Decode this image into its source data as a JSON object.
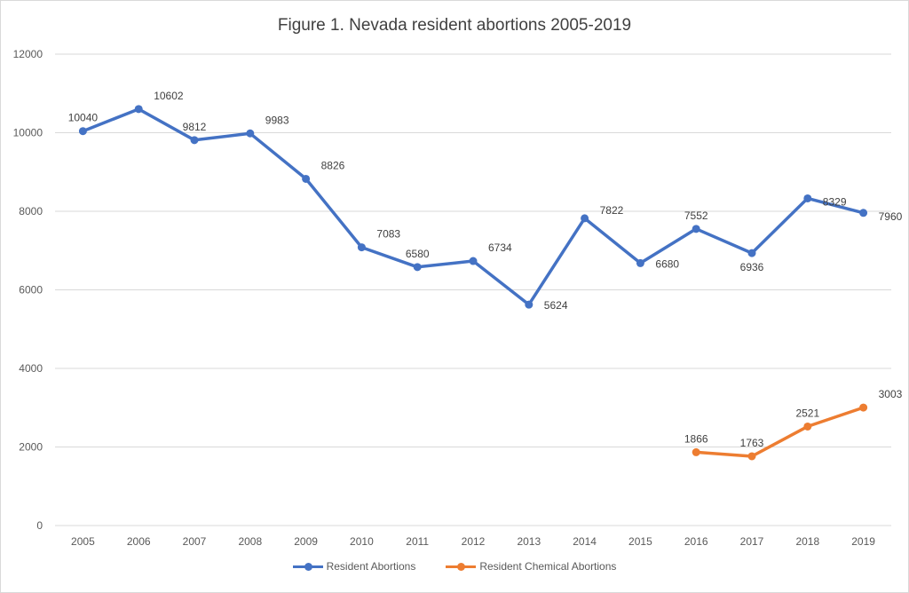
{
  "chart_data": {
    "type": "line",
    "title": "Figure 1. Nevada resident abortions 2005-2019",
    "xlabel": "",
    "ylabel": "",
    "categories": [
      "2005",
      "2006",
      "2007",
      "2008",
      "2009",
      "2010",
      "2011",
      "2012",
      "2013",
      "2014",
      "2015",
      "2016",
      "2017",
      "2018",
      "2019"
    ],
    "ylim": [
      0,
      12000
    ],
    "yticks": [
      "0",
      "2000",
      "4000",
      "6000",
      "8000",
      "10000",
      "12000"
    ],
    "grid": true,
    "legend_position": "bottom",
    "series": [
      {
        "name": "Resident Abortions",
        "color": "#4472c4",
        "values": [
          10040,
          10602,
          9812,
          9983,
          8826,
          7083,
          6580,
          6734,
          5624,
          7822,
          6680,
          7552,
          6936,
          8329,
          7960
        ],
        "labels": [
          "10040",
          "10602",
          "9812",
          "9983",
          "8826",
          "7083",
          "6580",
          "6734",
          "5624",
          "7822",
          "6680",
          "7552",
          "6936",
          "8329",
          "7960"
        ]
      },
      {
        "name": "Resident Chemical Abortions",
        "color": "#ed7d31",
        "values": [
          null,
          null,
          null,
          null,
          null,
          null,
          null,
          null,
          null,
          null,
          null,
          1866,
          1763,
          2521,
          3003
        ],
        "labels": [
          null,
          null,
          null,
          null,
          null,
          null,
          null,
          null,
          null,
          null,
          null,
          "1866",
          "1763",
          "2521",
          "3003"
        ]
      }
    ]
  }
}
